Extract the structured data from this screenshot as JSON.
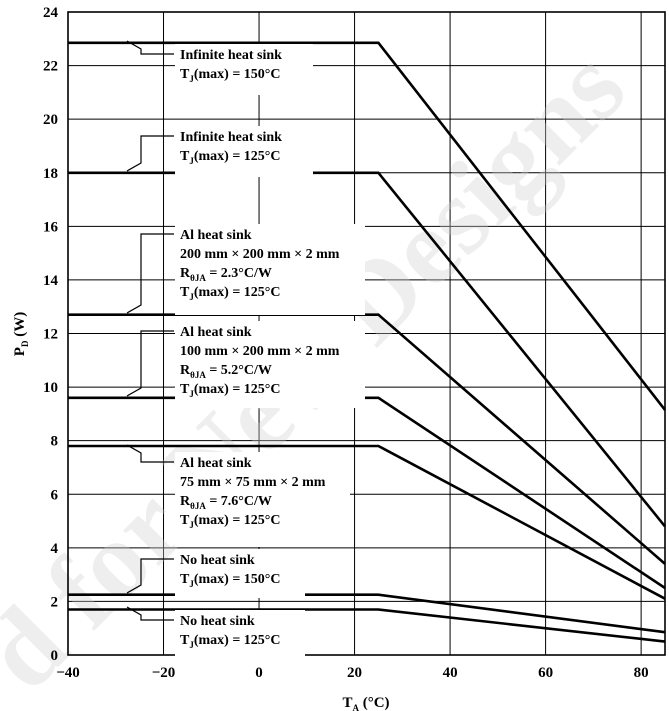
{
  "chart_data": {
    "type": "line",
    "xlabel": "T",
    "xlabel_sub": "A",
    "xlabel_unit": " (°C)",
    "ylabel": "P",
    "ylabel_sub": "D",
    "ylabel_unit": " (W)",
    "xlim": [
      -40,
      85
    ],
    "ylim": [
      0,
      24
    ],
    "x_ticks": [
      -40,
      -20,
      0,
      20,
      40,
      60,
      80
    ],
    "x_tick_labels": [
      "−40",
      "−20",
      "0",
      "20",
      "40",
      "60",
      "80"
    ],
    "y_ticks": [
      0,
      2,
      4,
      6,
      8,
      10,
      12,
      14,
      16,
      18,
      20,
      22,
      24
    ],
    "grid": true,
    "series": [
      {
        "x": [
          -40,
          25,
          85
        ],
        "y": [
          22.85,
          22.85,
          9.15
        ]
      },
      {
        "x": [
          -40,
          25,
          85
        ],
        "y": [
          18.0,
          18.0,
          4.8
        ]
      },
      {
        "x": [
          -40,
          25,
          85
        ],
        "y": [
          12.7,
          12.7,
          3.4
        ]
      },
      {
        "x": [
          -40,
          25,
          85
        ],
        "y": [
          9.6,
          9.6,
          2.5
        ]
      },
      {
        "x": [
          -40,
          25,
          85
        ],
        "y": [
          7.8,
          7.8,
          2.1
        ]
      },
      {
        "x": [
          -40,
          25,
          85
        ],
        "y": [
          2.25,
          2.25,
          0.85
        ]
      },
      {
        "x": [
          -40,
          25,
          85
        ],
        "y": [
          1.7,
          1.7,
          0.5
        ]
      }
    ],
    "annotations": [
      {
        "lines": [
          [
            "Infinite heat sink"
          ],
          [
            "T",
            "J",
            "(max) = 150°C"
          ]
        ]
      },
      {
        "lines": [
          [
            "Infinite heat sink"
          ],
          [
            "T",
            "J",
            "(max) = 125°C"
          ]
        ]
      },
      {
        "lines": [
          [
            "Al heat sink"
          ],
          [
            "200 mm × 200 mm × 2 mm"
          ],
          [
            "R",
            "θJA",
            " = 2.3°C/W"
          ],
          [
            "T",
            "J",
            "(max) = 125°C"
          ]
        ]
      },
      {
        "lines": [
          [
            "Al heat sink"
          ],
          [
            "100 mm × 200 mm × 2 mm"
          ],
          [
            "R",
            "θJA",
            " = 5.2°C/W"
          ],
          [
            "T",
            "J",
            "(max) = 125°C"
          ]
        ]
      },
      {
        "lines": [
          [
            "Al heat sink"
          ],
          [
            "75 mm × 75 mm × 2 mm"
          ],
          [
            "R",
            "θJA",
            " = 7.6°C/W"
          ],
          [
            "T",
            "J",
            "(max) = 125°C"
          ]
        ]
      },
      {
        "lines": [
          [
            "No heat sink"
          ],
          [
            "T",
            "J",
            "(max) = 150°C"
          ]
        ]
      },
      {
        "lines": [
          [
            "No heat sink"
          ],
          [
            "T",
            "J",
            "(max) = 125°C"
          ]
        ]
      }
    ],
    "watermark": "d for New Designs"
  }
}
